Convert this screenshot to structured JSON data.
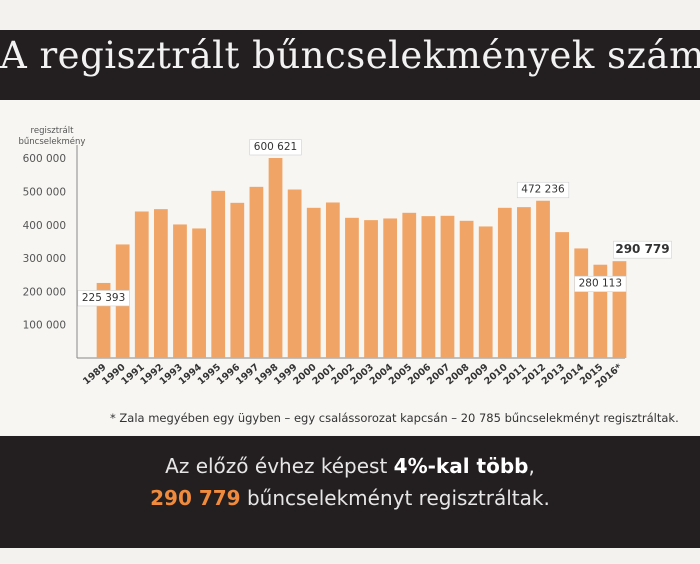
{
  "title": "A regisztrált bűncselekmények száma",
  "chart_data": {
    "type": "bar",
    "ylabel_lines": [
      "regisztrált",
      "bűncselekmény"
    ],
    "ylim": [
      0,
      650000
    ],
    "yticks": [
      100000,
      200000,
      300000,
      400000,
      500000,
      600000
    ],
    "ytick_labels": [
      "100 000",
      "200 000",
      "300 000",
      "400 000",
      "500 000",
      "600 000"
    ],
    "grid": false,
    "bar_color": "#f0a465",
    "categories": [
      "1989",
      "1990",
      "1991",
      "1992",
      "1993",
      "1994",
      "1995",
      "1996",
      "1997",
      "1998",
      "1999",
      "2000",
      "2001",
      "2002",
      "2003",
      "2004",
      "2005",
      "2006",
      "2007",
      "2008",
      "2009",
      "2010",
      "2011",
      "2012",
      "2013",
      "2014",
      "2015",
      "2016*"
    ],
    "values": [
      225393,
      341000,
      440000,
      447000,
      401000,
      389000,
      502000,
      466000,
      514000,
      600621,
      506000,
      451000,
      467000,
      421000,
      414000,
      419000,
      436000,
      426000,
      427000,
      412000,
      395000,
      451000,
      453000,
      472236,
      378000,
      329000,
      280113,
      290779
    ],
    "annotations": [
      {
        "category": "1989",
        "text": "225 393"
      },
      {
        "category": "1998",
        "text": "600 621"
      },
      {
        "category": "2012",
        "text": "472 236"
      },
      {
        "category": "2015",
        "text": "280 113"
      },
      {
        "category": "2016*",
        "text": "290 779",
        "bold": true
      }
    ]
  },
  "footnote": "* Zala megyében egy ügyben – egy csalássorozat kapcsán – 20 785 bűncselekményt regisztráltak.",
  "message": {
    "line1_pre": "Az előző évhez képest ",
    "line1_bold": "4%-kal több",
    "line1_post": ",",
    "line2_number": "290 779",
    "line2_rest": " bűncselekményt regisztráltak."
  }
}
